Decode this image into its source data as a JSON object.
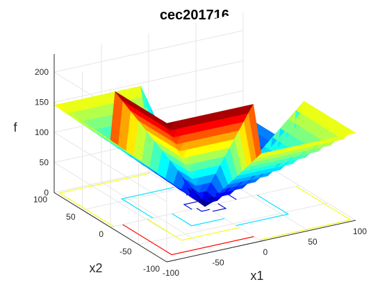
{
  "chart_data": {
    "type": "surface",
    "title": "cec201716",
    "xlabel": "x1",
    "ylabel": "x2",
    "zlabel": "f",
    "xlim": [
      -100,
      100
    ],
    "ylim": [
      -100,
      100
    ],
    "zlim": [
      0,
      230
    ],
    "x_ticks": [
      -100,
      -50,
      0,
      50,
      100
    ],
    "y_ticks": [
      -100,
      -50,
      0,
      50,
      100
    ],
    "z_ticks": [
      0,
      50,
      100,
      150,
      200
    ],
    "x_tick_labels": [
      "-100",
      "-50",
      "0",
      "50",
      "100"
    ],
    "y_tick_labels": [
      "-100",
      "-50",
      "0",
      "50",
      "100"
    ],
    "z_tick_labels": [
      "0",
      "50",
      "100",
      "150",
      "200"
    ],
    "grid": true,
    "colormap": "jet",
    "contour_projection": true,
    "contour_levels": [
      20,
      80,
      140,
      200
    ],
    "corner_values": {
      "x1_min_x2_min": 230,
      "x1_max_x2_min": 145,
      "x1_min_x2_max": 145,
      "x1_max_x2_max": 60
    },
    "minimum": {
      "x1": 0,
      "x2": 0,
      "f": 0
    }
  }
}
